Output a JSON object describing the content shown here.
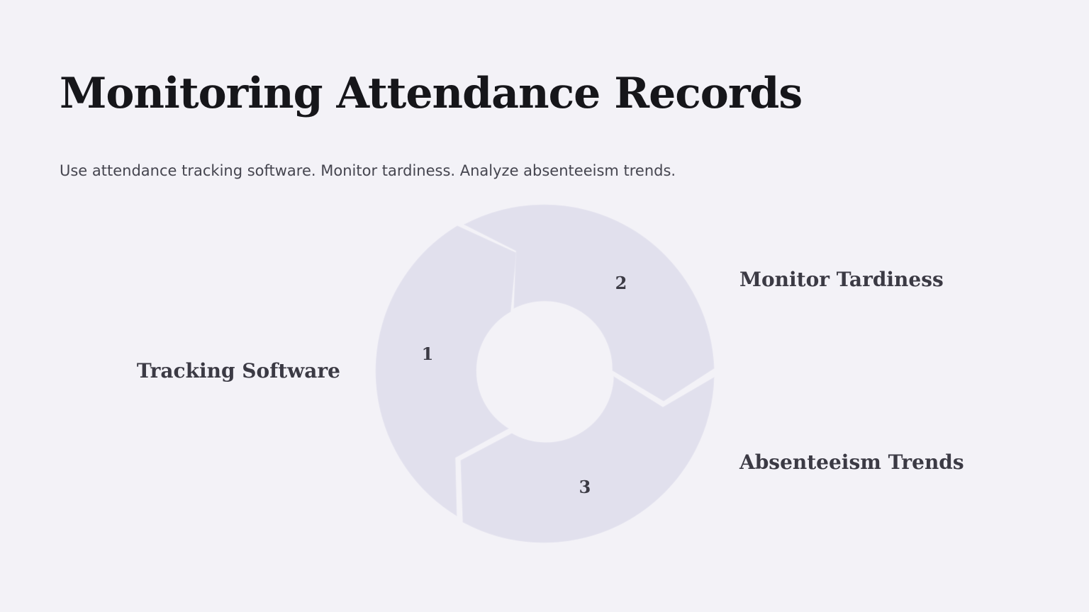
{
  "slide": {
    "title": "Monitoring Attendance Records",
    "subtitle": "Use attendance tracking software. Monitor tardiness. Analyze absenteeism trends."
  },
  "cycle": {
    "segment_color": "#e1e0ed",
    "steps": [
      {
        "number": "1",
        "label": "Tracking Software"
      },
      {
        "number": "2",
        "label": "Monitor Tardiness"
      },
      {
        "number": "3",
        "label": "Absenteeism Trends"
      }
    ]
  }
}
